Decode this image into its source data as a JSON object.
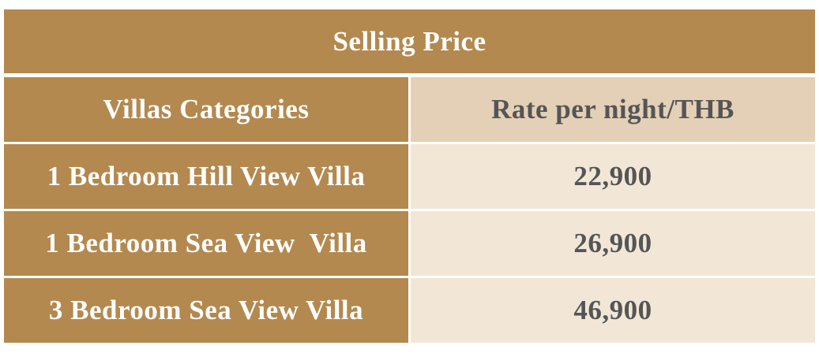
{
  "table": {
    "title": "Selling Price",
    "header": [
      "Villas Categories",
      "Rate per night/THB"
    ],
    "rows": [
      [
        "1 Bedroom Hill View Villa",
        "22,900"
      ],
      [
        "1 Bedroom Sea View  Villa",
        "26,900"
      ],
      [
        "3 Bedroom Sea View Villa",
        "46,900"
      ]
    ]
  }
}
